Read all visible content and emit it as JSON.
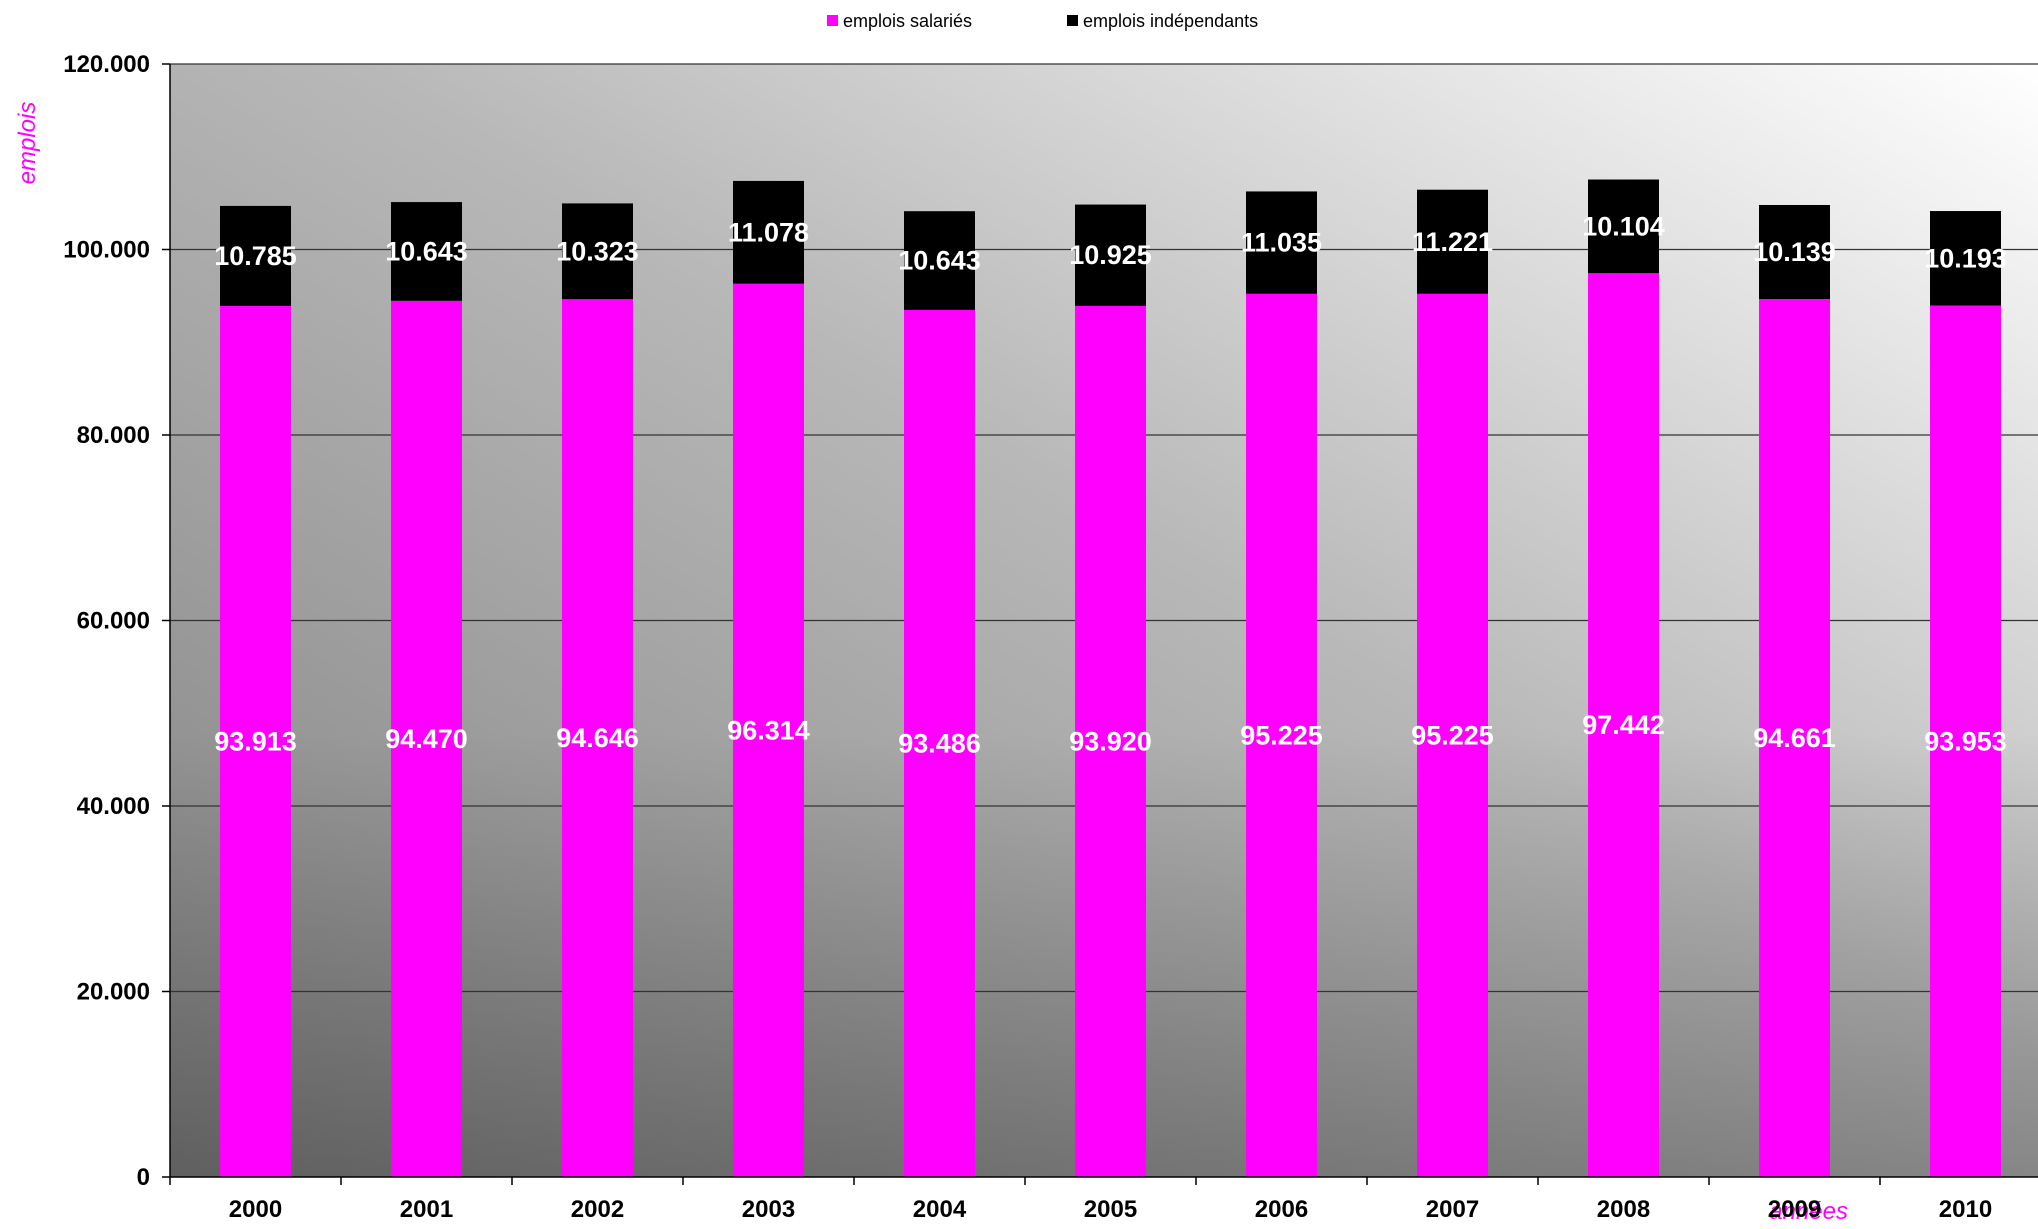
{
  "colors": {
    "salaries": "#ff00ff",
    "independants": "#000000",
    "axis_title": "#ff00ff",
    "bar_label": "#ffffff",
    "tick_label": "#000000",
    "grid": "#333333",
    "plot_bg_dark": "#7f7f7f",
    "plot_bg_light": "#ffffff"
  },
  "legend": {
    "items": [
      {
        "label": "emplois salariés",
        "color_key": "salaries"
      },
      {
        "label": "emplois indépendants",
        "color_key": "independants"
      }
    ]
  },
  "chart_data": {
    "type": "bar",
    "stacked": true,
    "categories": [
      "2000",
      "2001",
      "2002",
      "2003",
      "2004",
      "2005",
      "2006",
      "2007",
      "2008",
      "2009",
      "2010"
    ],
    "series": [
      {
        "name": "emplois salariés",
        "values": [
          93913,
          94470,
          94646,
          96314,
          93486,
          93920,
          95225,
          95225,
          97442,
          94661,
          93953
        ],
        "labels": [
          "93.913",
          "94.470",
          "94.646",
          "96.314",
          "93.486",
          "93.920",
          "95.225",
          "95.225",
          "97.442",
          "94.661",
          "93.953"
        ]
      },
      {
        "name": "emplois indépendants",
        "values": [
          10785,
          10643,
          10323,
          11078,
          10643,
          10925,
          11035,
          11221,
          10104,
          10139,
          10193
        ],
        "labels": [
          "10.785",
          "10.643",
          "10.323",
          "11.078",
          "10.643",
          "10.925",
          "11.035",
          "11.221",
          "10.104",
          "10.139",
          "10.193"
        ]
      }
    ],
    "ylabel": "emplois",
    "xlabel": "années",
    "ylim": [
      0,
      120000
    ],
    "yticks": [
      0,
      20000,
      40000,
      60000,
      80000,
      100000,
      120000
    ],
    "ytick_labels": [
      "0",
      "20.000",
      "40.000",
      "60.000",
      "80.000",
      "100.000",
      "120.000"
    ],
    "grid": true,
    "legend_position": "top"
  }
}
